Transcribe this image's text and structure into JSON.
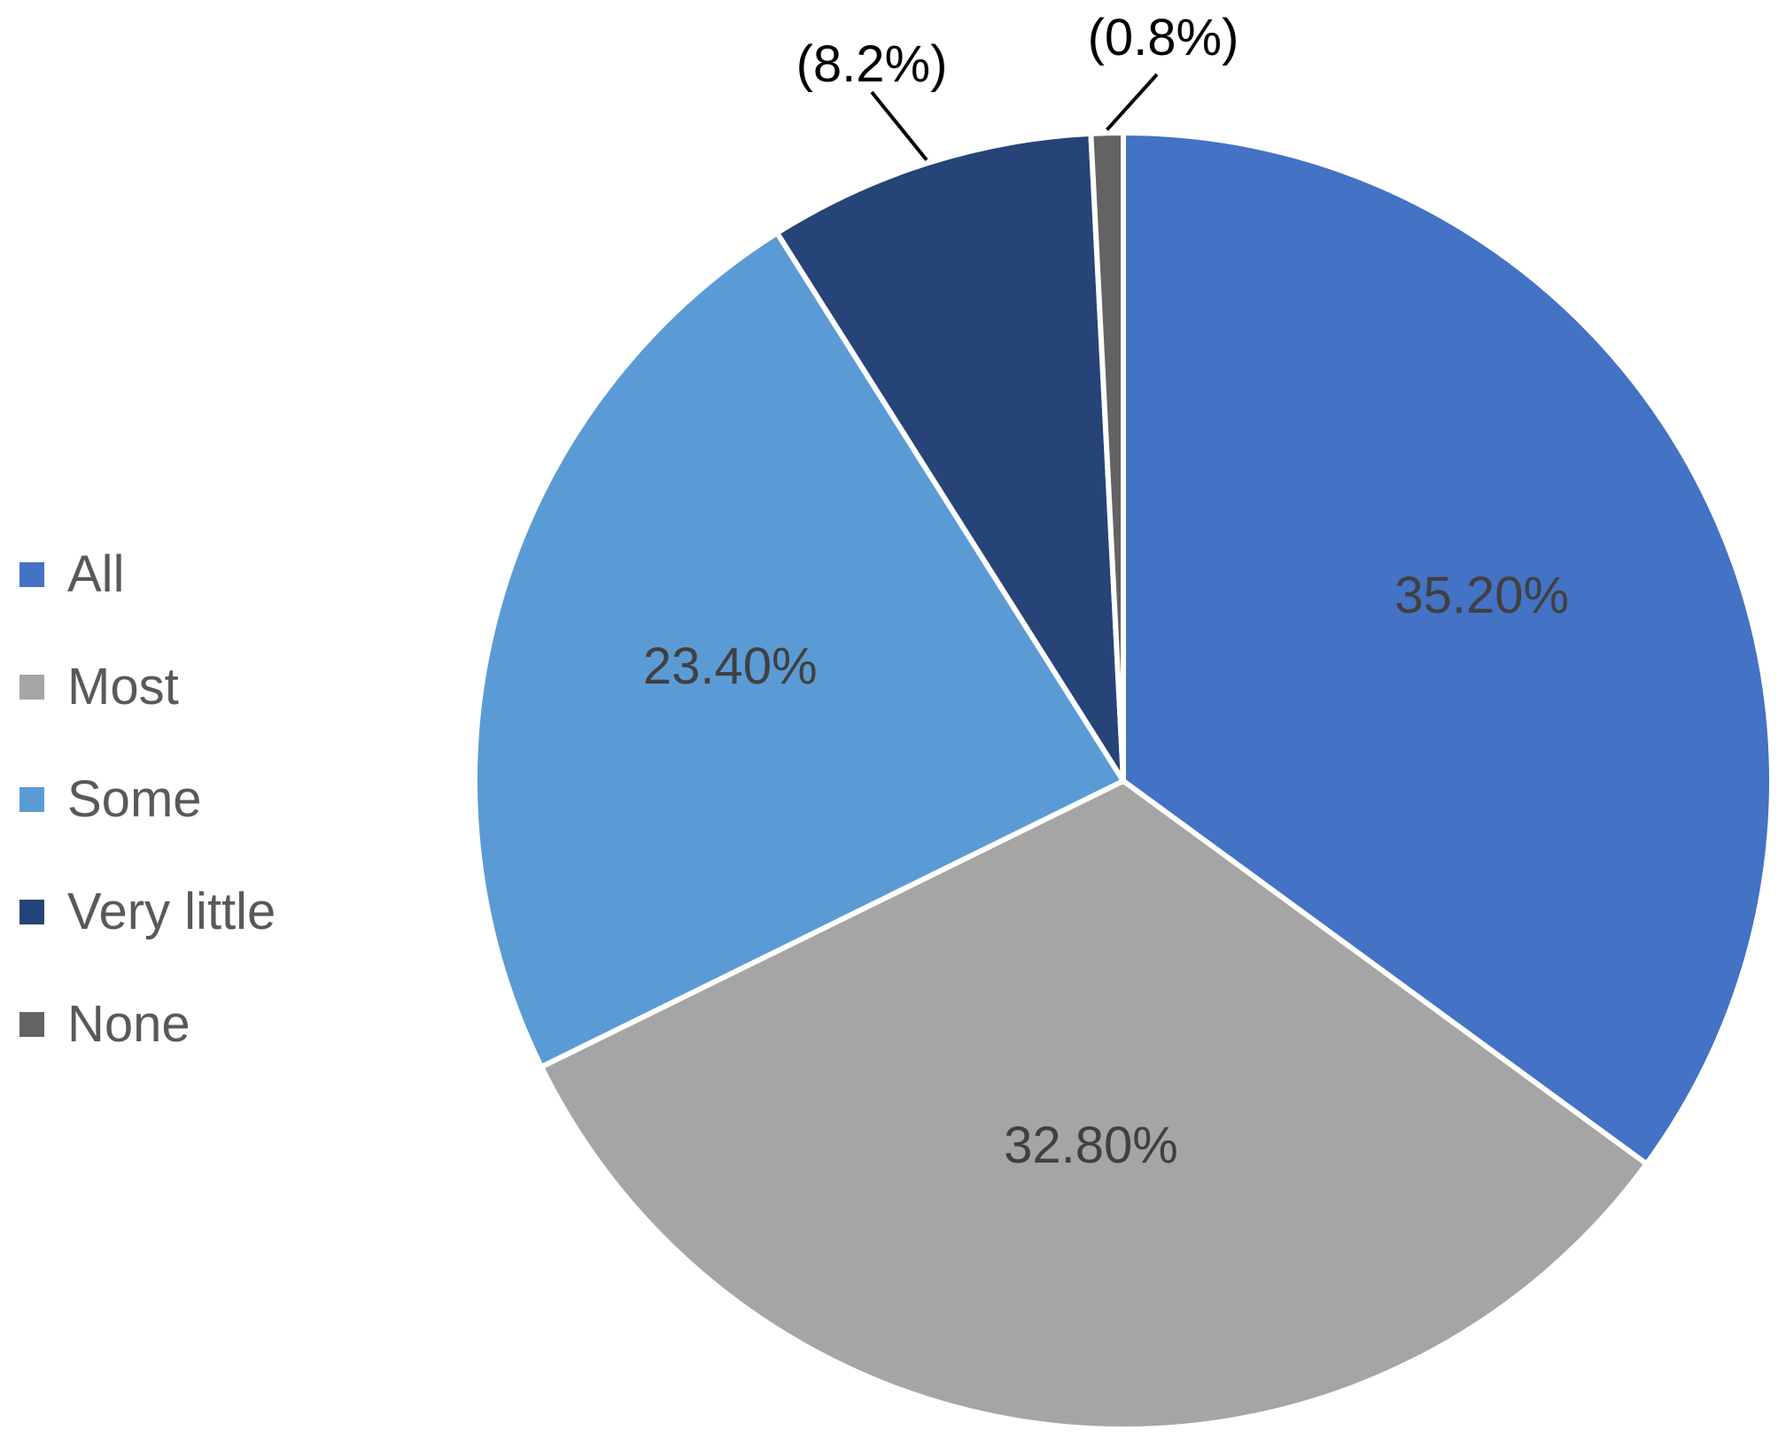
{
  "chart_data": {
    "type": "pie",
    "title": "",
    "categories": [
      "All",
      "Most",
      "Some",
      "Very little",
      "None"
    ],
    "values": [
      35.2,
      32.8,
      23.4,
      8.2,
      0.8
    ],
    "data_labels": [
      "35.20%",
      "32.80%",
      "23.40%",
      "(8.2%)",
      "(0.8%)"
    ],
    "colors": [
      "#4472C4",
      "#A5A5A5",
      "#5B9BD5",
      "#264478",
      "#636363"
    ],
    "legend_position": "left",
    "start_angle": "12 o'clock",
    "direction": "clockwise"
  }
}
